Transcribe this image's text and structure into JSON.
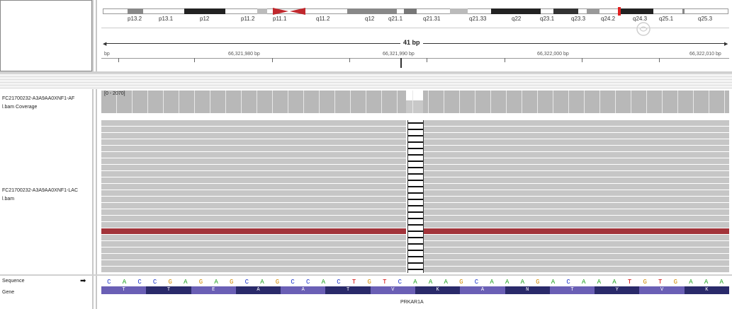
{
  "ideogram": {
    "bands": [
      "p13.2",
      "p13.1",
      "p12",
      "p11.2",
      "p11.1",
      "q11.2",
      "q12",
      "q21.1",
      "q21.31",
      "q21.33",
      "q22",
      "q23.1",
      "q23.3",
      "q24.2",
      "q24.3",
      "q25.1",
      "q25.3"
    ]
  },
  "ruler": {
    "span": "41 bp",
    "ticks": [
      "bp",
      "66,321,980 bp",
      "66,321,990 bp",
      "66,322,000 bp",
      "66,322,010 bp"
    ]
  },
  "tracks": {
    "coverage_name": "FC21700232-A3A9AA0XNF1-AF",
    "coverage_name_2": "l.bam Coverage",
    "coverage_range": "[0 - 2070]",
    "alignment_name": "FC21700232-A3A9AA0XNF1-LAC",
    "alignment_name_2": "l.bam"
  },
  "sequence": {
    "label": "Sequence",
    "bases": [
      "C",
      "A",
      "C",
      "C",
      "G",
      "A",
      "G",
      "A",
      "G",
      "C",
      "A",
      "G",
      "C",
      "C",
      "A",
      "C",
      "T",
      "G",
      "T",
      "C",
      "A",
      "A",
      "A",
      "G",
      "C",
      "A",
      "A",
      "A",
      "G",
      "A",
      "C",
      "A",
      "A",
      "A",
      "T",
      "G",
      "T",
      "G",
      "A",
      "A",
      "A"
    ]
  },
  "gene": {
    "label": "Gene",
    "amino_acids": [
      "T",
      "T",
      "E",
      "A",
      "A",
      "T",
      "V",
      "K",
      "A",
      "N",
      "T",
      "Y",
      "V",
      "K"
    ],
    "name": "PRKAR1A"
  },
  "colors": {
    "A": "#1b9e1b",
    "C": "#1a33cc",
    "G": "#d18a00",
    "T": "#d40000",
    "aa_dark": "#2a2a6a",
    "aa_light": "#6a5fb5",
    "mismatch_row": "#a2343a"
  }
}
